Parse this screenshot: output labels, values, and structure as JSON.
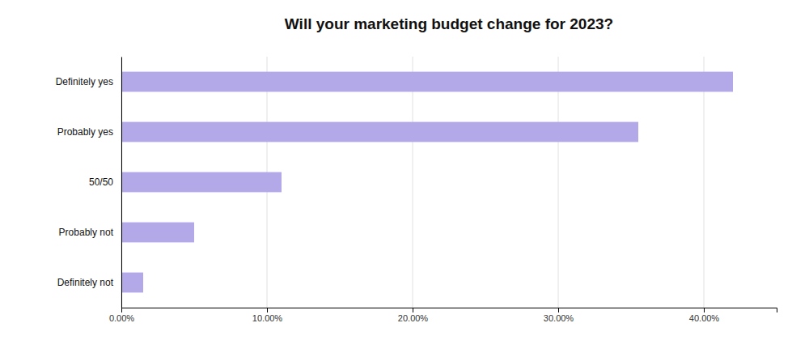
{
  "chart_data": {
    "type": "bar",
    "orientation": "horizontal",
    "title": "Will your marketing budget change for 2023?",
    "categories": [
      "Definitely yes",
      "Probably yes",
      "50/50",
      "Probably not",
      "Definitely not"
    ],
    "values": [
      0.42,
      0.355,
      0.11,
      0.05,
      0.015
    ],
    "color": "#b3a8e8",
    "xlim": [
      0,
      0.45
    ],
    "xticks": [
      {
        "value": 0.0,
        "label": "0.00%"
      },
      {
        "value": 0.1,
        "label": "10.00%"
      },
      {
        "value": 0.2,
        "label": "20.00%"
      },
      {
        "value": 0.3,
        "label": "30.00%"
      },
      {
        "value": 0.4,
        "label": "40.00%"
      }
    ],
    "grid": true
  }
}
